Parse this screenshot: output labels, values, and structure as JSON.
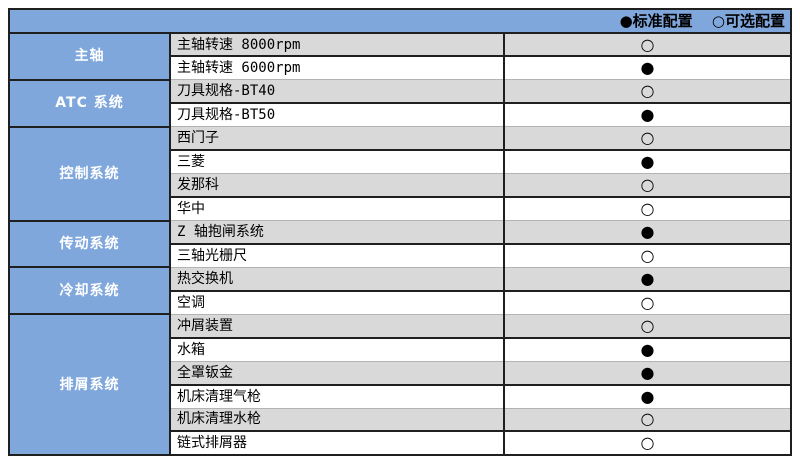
{
  "legend": {
    "standard": "●标准配置",
    "optional": "○可选配置"
  },
  "colors": {
    "header_blue": "#7FA7DC",
    "row_gray": "#D9D9D9",
    "row_white": "#FFFFFF",
    "border_dark": "#1F1F1F",
    "border_light": "#B3B3B3",
    "category_text": "#FFFFFF",
    "item_text": "#000000"
  },
  "categories": [
    {
      "label": "主轴",
      "rowspan": 2
    },
    {
      "label": "ATC 系统",
      "rowspan": 2
    },
    {
      "label": "控制系统",
      "rowspan": 4
    },
    {
      "label": "传动系统",
      "rowspan": 2
    },
    {
      "label": "冷却系统",
      "rowspan": 2
    },
    {
      "label": "排屑系统",
      "rowspan": 6
    }
  ],
  "rows": [
    {
      "item": "主轴转速 8000rpm",
      "marker": "○",
      "config": "可选配置"
    },
    {
      "item": "主轴转速 6000rpm",
      "marker": "●",
      "config": "标准配置"
    },
    {
      "item": "刀具规格-BT40",
      "marker": "○",
      "config": "可选配置"
    },
    {
      "item": "刀具规格-BT50",
      "marker": "●",
      "config": "标准配置"
    },
    {
      "item": "西门子",
      "marker": "○",
      "config": "可选配置"
    },
    {
      "item": "三菱",
      "marker": "●",
      "config": "标准配置"
    },
    {
      "item": "发那科",
      "marker": "○",
      "config": "可选配置"
    },
    {
      "item": "华中",
      "marker": "○",
      "config": "可选配置"
    },
    {
      "item": "Z 轴抱闸系统",
      "marker": "●",
      "config": "标准配置"
    },
    {
      "item": "三轴光栅尺",
      "marker": "○",
      "config": "可选配置"
    },
    {
      "item": "热交换机",
      "marker": "●",
      "config": "标准配置"
    },
    {
      "item": "空调",
      "marker": "○",
      "config": "可选配置"
    },
    {
      "item": "冲屑装置",
      "marker": "○",
      "config": "可选配置"
    },
    {
      "item": "水箱",
      "marker": "●",
      "config": "标准配置"
    },
    {
      "item": "全罩钣金",
      "marker": "●",
      "config": "标准配置"
    },
    {
      "item": "机床清理气枪",
      "marker": "●",
      "config": "标准配置"
    },
    {
      "item": "机床清理水枪",
      "marker": "○",
      "config": "可选配置"
    },
    {
      "item": "链式排屑器",
      "marker": "○",
      "config": "可选配置"
    }
  ]
}
